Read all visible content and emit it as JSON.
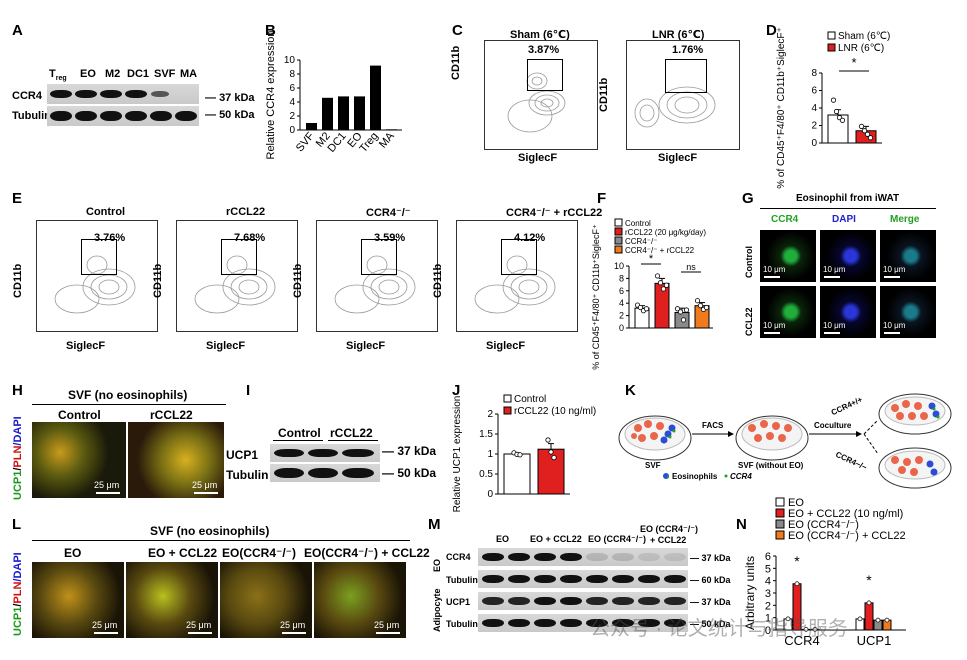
{
  "panels": {
    "A": {
      "label": "A",
      "lanes": [
        "T",
        "EO",
        "M2",
        "DC1",
        "SVF",
        "MA"
      ],
      "treg_sub": "reg",
      "rows": [
        "CCR4",
        "Tubulin"
      ],
      "kda": [
        "37 kDa",
        "50 kDa"
      ]
    },
    "B": {
      "label": "B"
    },
    "C": {
      "label": "C",
      "left_title": "Sham (6℃)",
      "right_title": "LNR (6℃)",
      "left_pct": "3.87%",
      "right_pct": "1.76%",
      "xlabel": "SiglecF",
      "ylabel": "CD11b"
    },
    "D": {
      "label": "D",
      "sig": "*"
    },
    "E": {
      "label": "E",
      "titles": [
        "Control",
        "rCCL22",
        "CCR4⁻/⁻",
        "CCR4⁻/⁻ + rCCL22"
      ],
      "pcts": [
        "3.76%",
        "7.68%",
        "3.59%",
        "4.12%"
      ],
      "xlabel": "SiglecF",
      "ylabel": "CD11b"
    },
    "F": {
      "label": "F",
      "sig": "*",
      "ns": "ns"
    },
    "G": {
      "label": "G",
      "title": "Eosinophil from iWAT",
      "cols": [
        "CCR4",
        "DAPI",
        "Merge"
      ],
      "rows": [
        "Control",
        "CCL22"
      ],
      "scale": "10 μm"
    },
    "H": {
      "label": "H",
      "title": "SVF (no eosinophils)",
      "cols": [
        "Control",
        "rCCL22"
      ],
      "side": [
        "UCP1",
        "/",
        "PLN",
        "/DAPI"
      ],
      "scale": "25 μm"
    },
    "I": {
      "label": "I",
      "groups": [
        "Control",
        "rCCL22"
      ],
      "rows": [
        "UCP1",
        "Tubulin"
      ],
      "kda": [
        "37 kDa",
        "50 kDa"
      ]
    },
    "J": {
      "label": "J"
    },
    "K": {
      "label": "K",
      "svf": "SVF",
      "facs": "FACS",
      "svf_wo": "SVF (without EO)",
      "coculture": "Coculture",
      "ccr4pp": "CCR4+/+",
      "ccr4mm": "CCR4−/−",
      "leg_eos": "Eosinophils",
      "leg_ccr4": "CCR4"
    },
    "L": {
      "label": "L",
      "title": "SVF (no eosinophils)",
      "cols": [
        "EO",
        "EO + CCL22",
        "EO(CCR4⁻/⁻)",
        "EO(CCR4⁻/⁻) + CCL22"
      ],
      "side": [
        "UCP1",
        "/",
        "PLN",
        "/DAPI"
      ],
      "scale": "25 μm"
    },
    "M": {
      "label": "M",
      "lanes": [
        "EO",
        "EO + CCL22",
        "EO (CCR4⁻/⁻)",
        "EO (CCR4⁻/⁻)",
        "+ CCL22"
      ],
      "rows": [
        "CCR4",
        "Tubulin",
        "UCP1",
        "Tubulin"
      ],
      "groups": [
        "EO",
        "Adipocyte"
      ],
      "kda": [
        "37 kDa",
        "60 kDa",
        "37 kDa",
        "50 kDa"
      ]
    },
    "N": {
      "label": "N"
    }
  },
  "watermark": "公众号 · 论文统计与指导服务",
  "chart_data": [
    {
      "panel": "B",
      "type": "bar",
      "categories": [
        "SVF",
        "M2",
        "DC1",
        "EO",
        "Treg",
        "MA"
      ],
      "values": [
        1.0,
        4.6,
        4.8,
        4.8,
        9.2,
        0.1
      ],
      "ylabel": "Relative CCR4 expression",
      "ylim": [
        0,
        10
      ],
      "yticks": [
        0,
        2,
        4,
        6,
        8,
        10
      ]
    },
    {
      "panel": "D",
      "type": "bar",
      "categories": [
        "Sham (6℃)",
        "LNR (6℃)"
      ],
      "values": [
        3.2,
        1.4
      ],
      "errors": [
        0.6,
        0.5
      ],
      "points": [
        [
          4.9,
          3.6,
          2.9,
          2.6
        ],
        [
          1.9,
          1.4,
          1.0,
          0.6
        ]
      ],
      "colors": [
        "#ffffff",
        "#e0201f"
      ],
      "ylabel": "% of CD45⁺F4/80⁺ CD11b⁺SiglecF⁺",
      "ylim": [
        0,
        8
      ],
      "yticks": [
        0,
        2,
        4,
        6,
        8
      ],
      "legend": [
        "Sham (6℃)",
        "LNR (6℃)"
      ]
    },
    {
      "panel": "F",
      "type": "bar",
      "categories": [
        "Control",
        "rCCL22 (20 μg/kg/day)",
        "CCR4⁻/⁻",
        "CCR4⁻/⁻ + rCCL22"
      ],
      "values": [
        3.2,
        7.2,
        2.5,
        3.6
      ],
      "errors": [
        0.4,
        0.8,
        0.7,
        0.5
      ],
      "points": [
        [
          3.7,
          3.3,
          2.8,
          3.1
        ],
        [
          8.4,
          7.3,
          6.3,
          6.9
        ],
        [
          3.1,
          2.6,
          1.3,
          2.9
        ],
        [
          4.4,
          3.6,
          3.0,
          3.3
        ]
      ],
      "colors": [
        "#ffffff",
        "#e0201f",
        "#8a8a8a",
        "#f07a1e"
      ],
      "ylabel": "% of CD45⁺F4/80⁺ CD11b⁺SiglecF⁺",
      "ylim": [
        0,
        10
      ],
      "yticks": [
        0,
        2,
        4,
        6,
        8,
        10
      ],
      "legend": [
        "Control",
        "rCCL22 (20 μg/kg/day)",
        "CCR4⁻/⁻",
        "CCR4⁻/⁻ + rCCL22"
      ]
    },
    {
      "panel": "J",
      "type": "bar",
      "categories": [
        "Control",
        "rCCL22 (10 ng/ml)"
      ],
      "values": [
        1.0,
        1.12
      ],
      "errors": [
        0.03,
        0.14
      ],
      "points": [
        [
          1.03,
          0.99,
          0.98
        ],
        [
          1.35,
          1.05,
          0.91
        ]
      ],
      "colors": [
        "#ffffff",
        "#e0201f"
      ],
      "ylabel": "Relative UCP1 expression",
      "ylim": [
        0,
        2.0
      ],
      "yticks": [
        0,
        0.5,
        1.0,
        1.5,
        2.0
      ],
      "legend": [
        "Control",
        "rCCL22 (10 ng/ml)"
      ]
    },
    {
      "panel": "N",
      "type": "bar",
      "categories": [
        "CCR4",
        "UCP1"
      ],
      "series": [
        {
          "name": "EO",
          "values": [
            0.9,
            0.9
          ],
          "color": "#ffffff"
        },
        {
          "name": "EO + CCL22 (10 ng/ml)",
          "values": [
            3.75,
            2.2
          ],
          "color": "#e0201f"
        },
        {
          "name": "EO (CCR4⁻/⁻)",
          "values": [
            0.05,
            0.8
          ],
          "color": "#8a8a8a"
        },
        {
          "name": "EO (CCR4⁻/⁻) + CCL22",
          "values": [
            0.05,
            0.8
          ],
          "color": "#f07a1e"
        }
      ],
      "ylabel": "Arbitrary units",
      "ylim": [
        0,
        6
      ],
      "yticks": [
        0,
        1,
        2,
        3,
        4,
        5,
        6
      ],
      "sig": [
        "*",
        "*"
      ]
    }
  ]
}
